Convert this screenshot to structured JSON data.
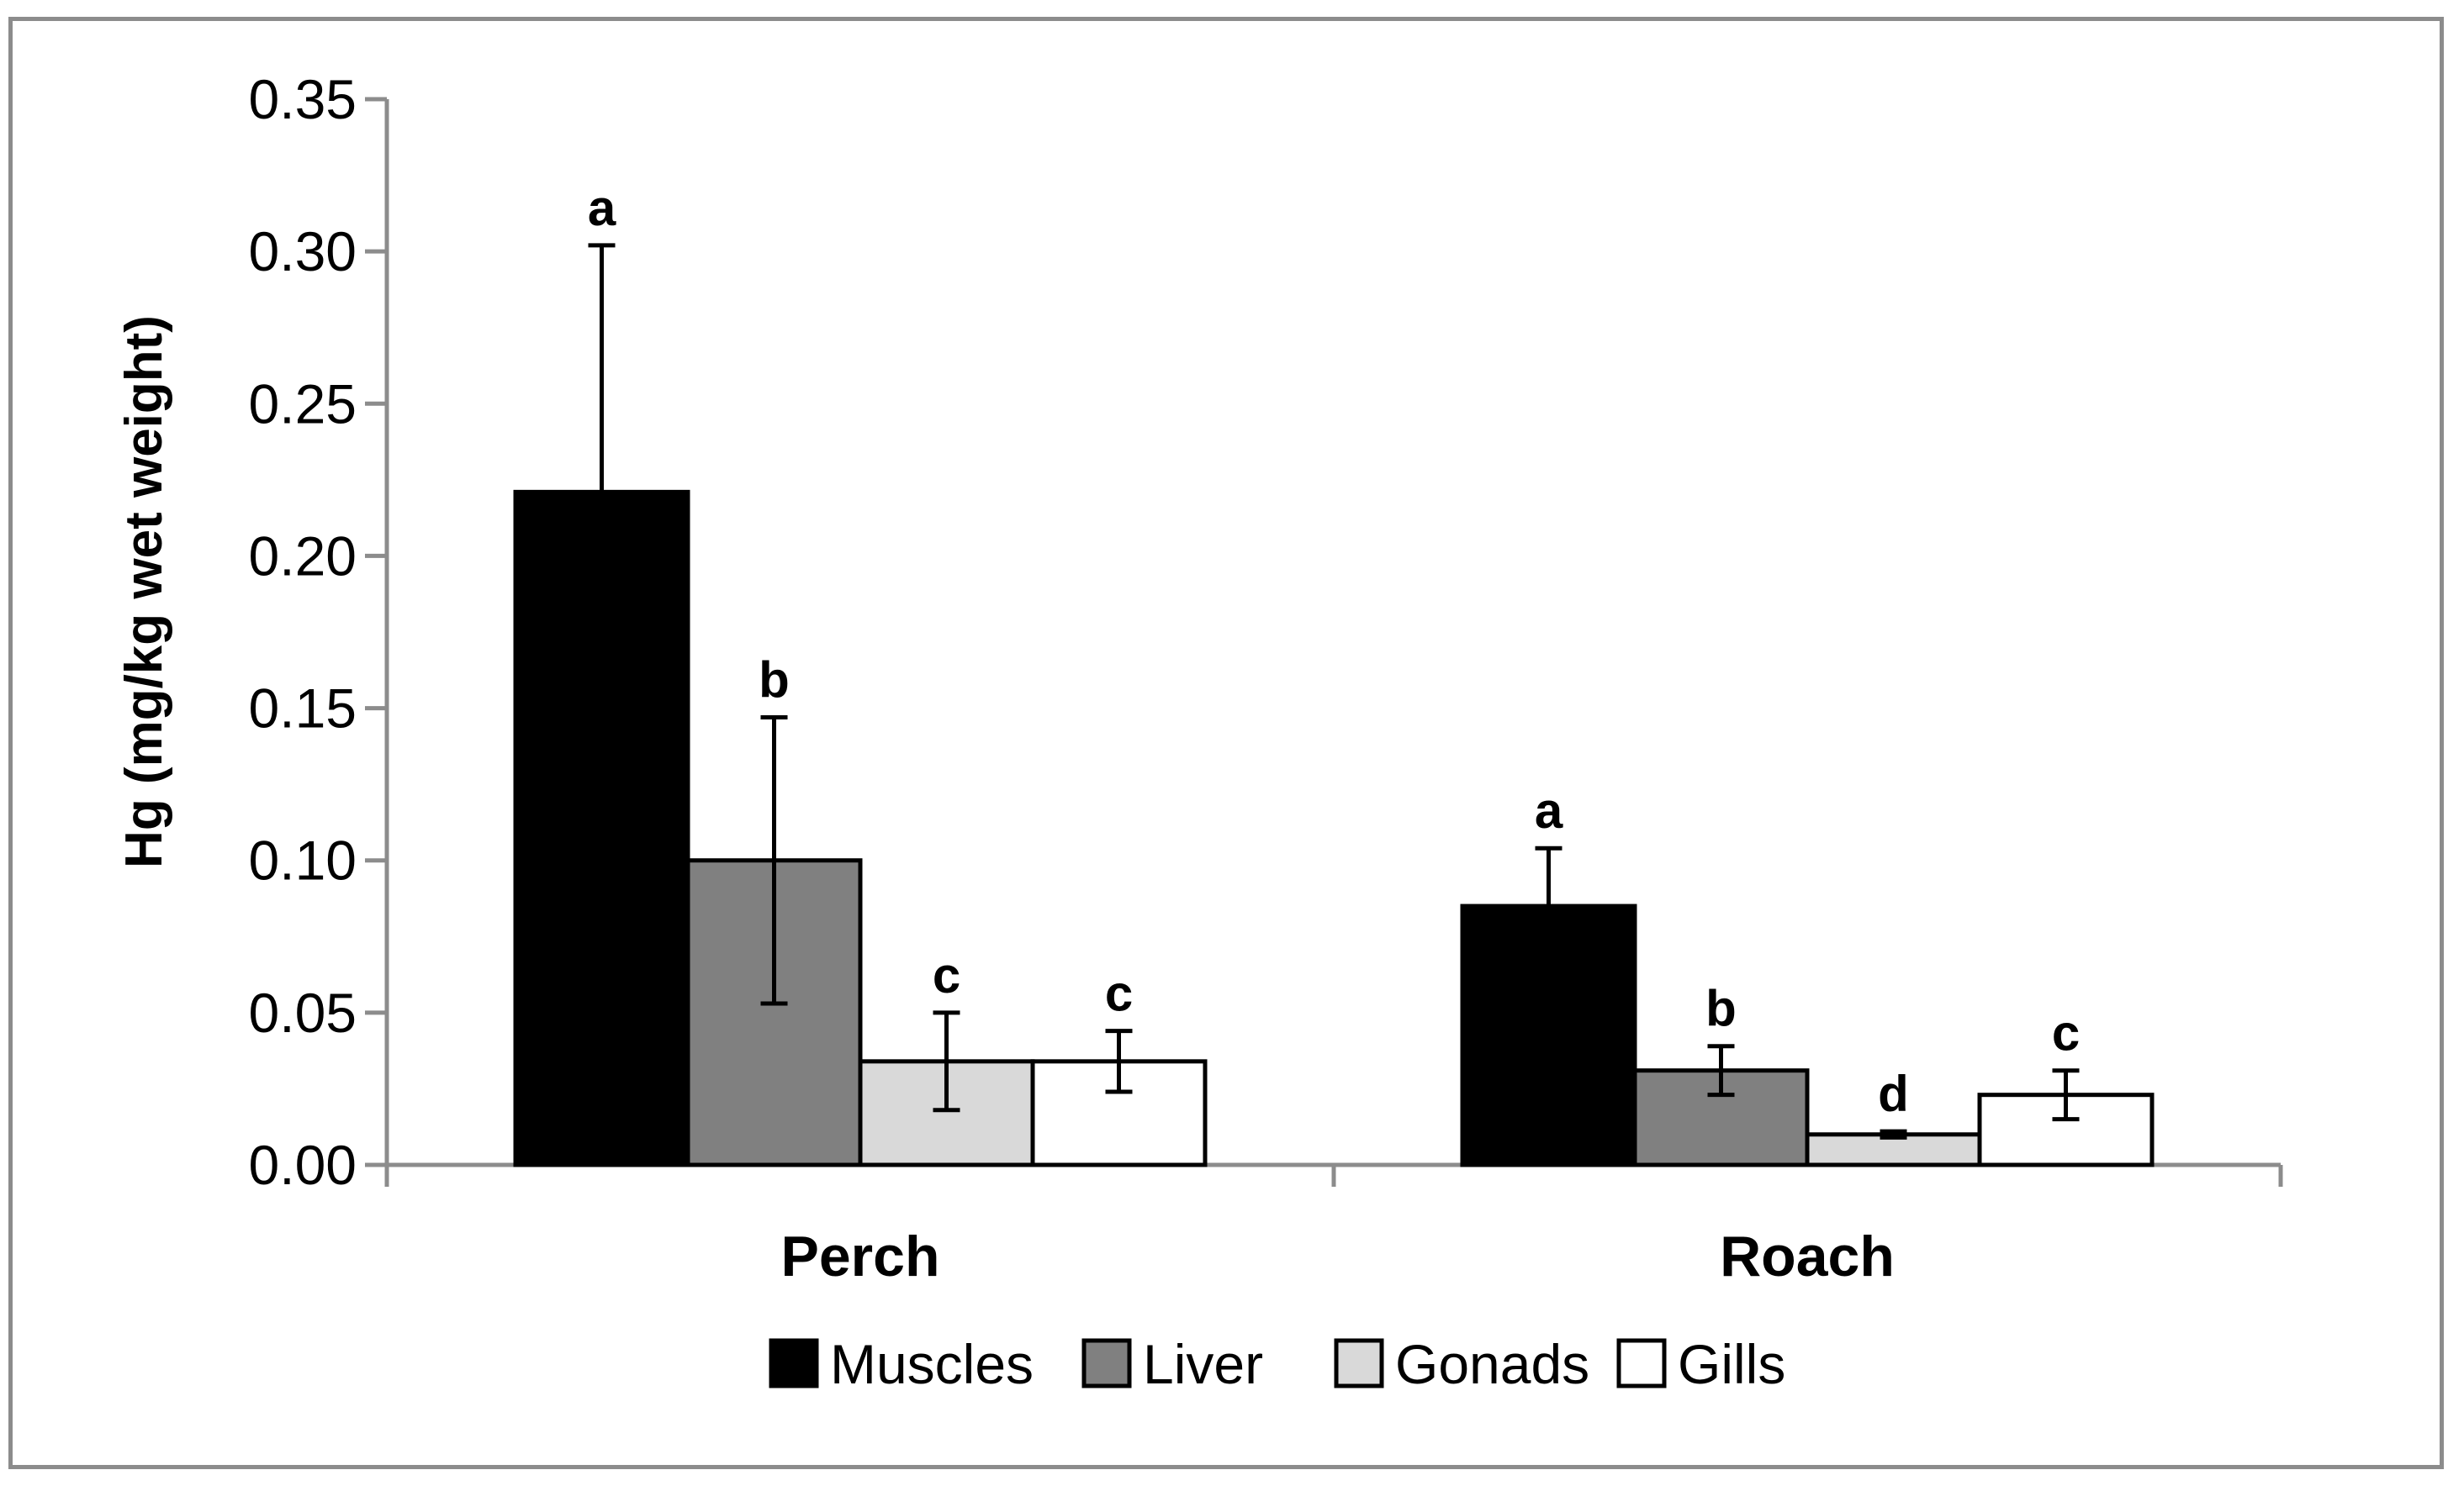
{
  "chart_data": {
    "type": "bar",
    "title": "",
    "xlabel": "",
    "ylabel": "Hg (mg/kg wet weight)",
    "ylim": [
      0,
      0.35
    ],
    "yticks": [
      "0.00",
      "0.05",
      "0.10",
      "0.15",
      "0.20",
      "0.25",
      "0.30",
      "0.35"
    ],
    "ytick_values": [
      0,
      0.05,
      0.1,
      0.15,
      0.2,
      0.25,
      0.3,
      0.35
    ],
    "grid": false,
    "legend_position": "bottom",
    "categories": [
      "Perch",
      "Roach"
    ],
    "series": [
      {
        "name": "Muscles",
        "color": "#000000",
        "values": [
          0.221,
          0.085
        ],
        "errors": [
          0.081,
          0.019
        ],
        "labels": [
          "a",
          "a"
        ]
      },
      {
        "name": "Liver",
        "color": "#808080",
        "values": [
          0.1,
          0.031
        ],
        "errors": [
          0.047,
          0.008
        ],
        "labels": [
          "b",
          "b"
        ]
      },
      {
        "name": "Gonads",
        "color": "#d9d9d9",
        "values": [
          0.034,
          0.01
        ],
        "errors": [
          0.016,
          0.001
        ],
        "labels": [
          "c",
          "d"
        ]
      },
      {
        "name": "Gills",
        "color": "#ffffff",
        "values": [
          0.034,
          0.023
        ],
        "errors": [
          0.01,
          0.008
        ],
        "labels": [
          "c",
          "c"
        ]
      }
    ]
  }
}
